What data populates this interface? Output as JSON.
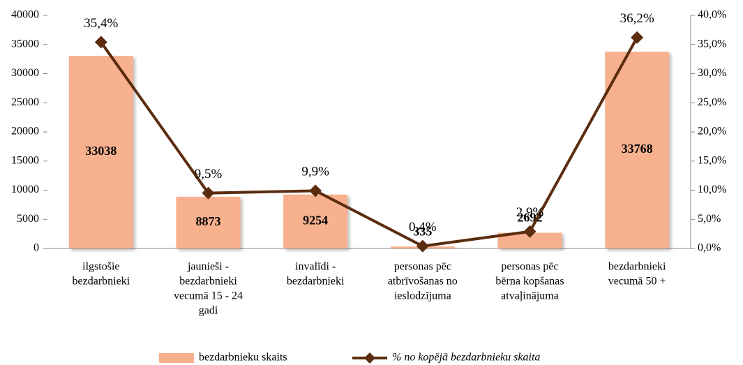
{
  "chart_data": {
    "type": "bar",
    "categories": [
      [
        "ilgstošie",
        "bezdarbnieki"
      ],
      [
        "jaunieši -",
        "bezdarbnieki",
        "vecumā 15 - 24",
        "gadi"
      ],
      [
        "invalīdi -",
        "bezdarbnieki"
      ],
      [
        "personas pēc",
        "atbrīvošanas no",
        "ieslodzījuma"
      ],
      [
        "personas pēc",
        "bērna kopšanas",
        "atvaļinājuma"
      ],
      [
        "bezdarbnieki",
        "vecumā 50 +"
      ]
    ],
    "series": [
      {
        "name": "bezdarbnieku skaits",
        "type": "bar",
        "color": "#f7b18f",
        "values": [
          33038,
          8873,
          9254,
          335,
          2692,
          33768
        ]
      },
      {
        "name": "% no kopējā bezdarbnieku skaita",
        "type": "line",
        "axis": "y2",
        "color": "#5b2c0e",
        "values": [
          35.4,
          9.5,
          9.9,
          0.4,
          2.9,
          36.2
        ],
        "value_labels": [
          "35,4%",
          "9,5%",
          "9,9%",
          "0,4%",
          "2,9%",
          "36,2%"
        ]
      }
    ],
    "ylim": [
      0,
      40000
    ],
    "yticks": [
      0,
      5000,
      10000,
      15000,
      20000,
      25000,
      30000,
      35000,
      40000
    ],
    "y2lim": [
      0,
      40
    ],
    "y2ticks": [
      {
        "value": 0,
        "label": "0,0%"
      },
      {
        "value": 5,
        "label": "5,0%"
      },
      {
        "value": 10,
        "label": "10,0%"
      },
      {
        "value": 15,
        "label": "15,0%"
      },
      {
        "value": 20,
        "label": "20,0%"
      },
      {
        "value": 25,
        "label": "25,0%"
      },
      {
        "value": 30,
        "label": "30,0%"
      },
      {
        "value": 35,
        "label": "35,0%"
      },
      {
        "value": 40,
        "label": "40,0%"
      }
    ],
    "legend": "bottom"
  }
}
